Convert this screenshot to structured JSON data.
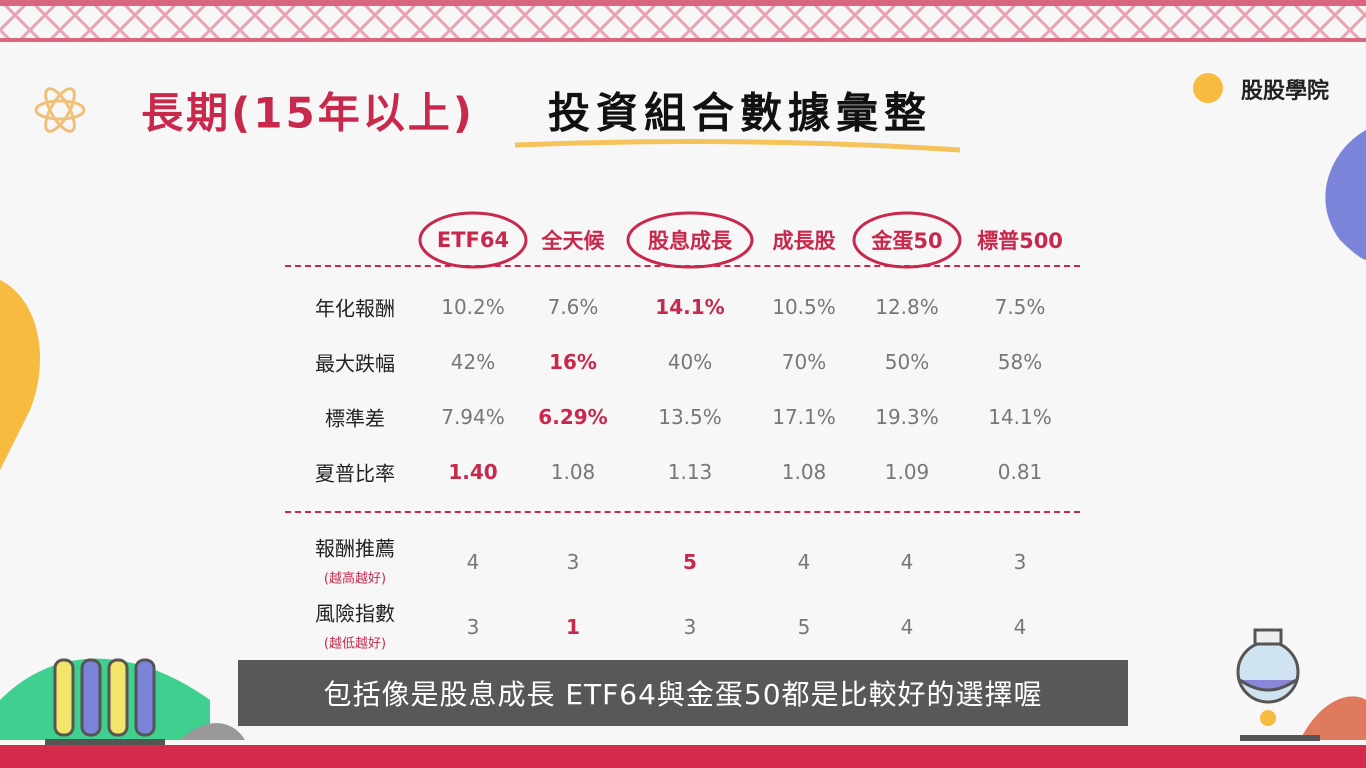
{
  "header": {
    "title_accent": "長期(15年以上)",
    "title_main": "投資組合數據彙整",
    "logo": "股股學院"
  },
  "table": {
    "columns": [
      "ETF64",
      "全天候",
      "股息成長",
      "成長股",
      "金蛋50",
      "標普500"
    ],
    "rows": [
      {
        "label": "年化報酬",
        "values": [
          "10.2%",
          "7.6%",
          "14.1%",
          "10.5%",
          "12.8%",
          "7.5%"
        ]
      },
      {
        "label": "最大跌幅",
        "values": [
          "42%",
          "16%",
          "40%",
          "70%",
          "50%",
          "58%"
        ]
      },
      {
        "label": "標準差",
        "values": [
          "7.94%",
          "6.29%",
          "13.5%",
          "17.1%",
          "19.3%",
          "14.1%"
        ]
      },
      {
        "label": "夏普比率",
        "values": [
          "1.40",
          "1.08",
          "1.13",
          "1.08",
          "1.09",
          "0.81"
        ]
      }
    ],
    "scores": [
      {
        "label": "報酬推薦",
        "note": "(越高越好)",
        "values": [
          "4",
          "3",
          "5",
          "4",
          "4",
          "3"
        ]
      },
      {
        "label": "風險指數",
        "note": "(越低越好)",
        "values": [
          "3",
          "1",
          "3",
          "5",
          "4",
          "4"
        ]
      }
    ]
  },
  "subtitle": "包括像是股息成長 ETF64與金蛋50都是比較好的選擇喔"
}
